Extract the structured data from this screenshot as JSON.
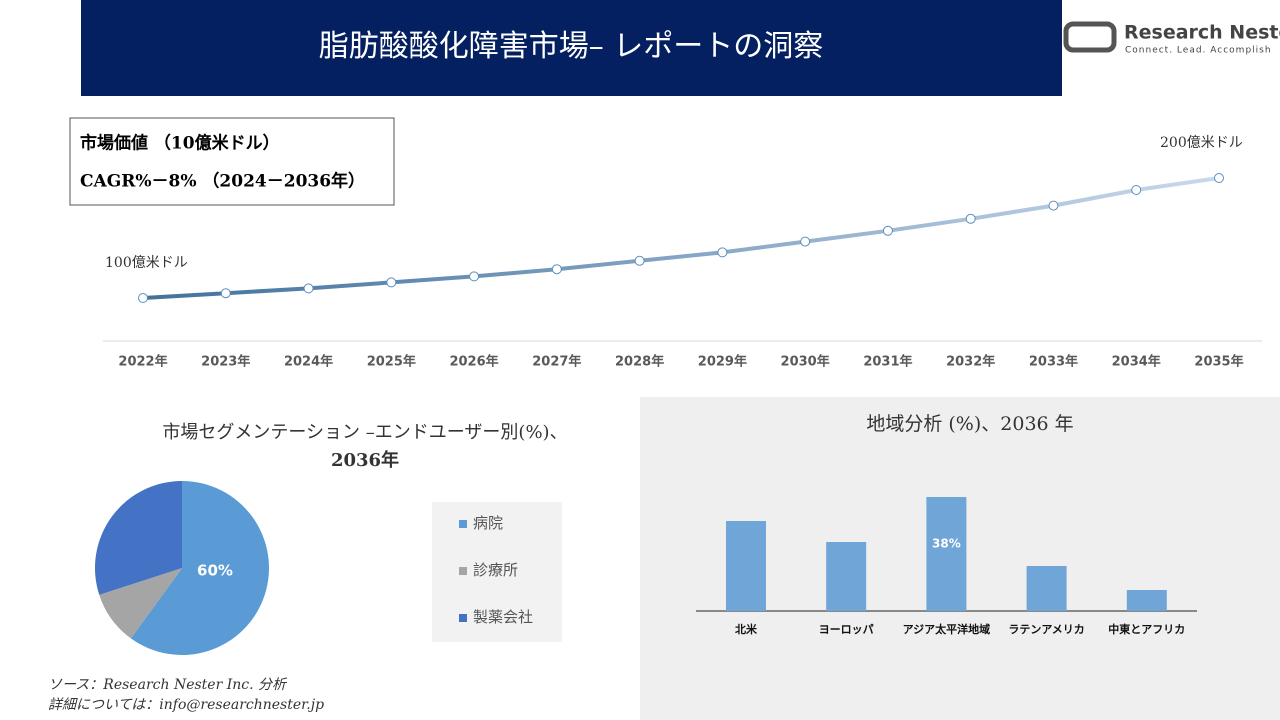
{
  "header": {
    "title": "脂肪酸酸化障害市場– レポートの洞察",
    "logo_name": "Research Nester",
    "logo_tagline": "Connect. Lead. Accomplish"
  },
  "info_box": [
    "市場価値 （10億米ドル）",
    "CAGR%－8% （2024－2036年）"
  ],
  "chart_data": [
    {
      "type": "line",
      "categories": [
        "2022年",
        "2023年",
        "2024年",
        "2025年",
        "2026年",
        "2027年",
        "2028年",
        "2029年",
        "2030年",
        "2031年",
        "2032年",
        "2033年",
        "2034年",
        "2035年"
      ],
      "values": [
        100,
        104,
        108,
        113,
        118,
        124,
        131,
        138,
        147,
        156,
        166,
        177,
        190,
        200
      ],
      "value_labels": [
        "100億米ドル",
        null,
        null,
        null,
        null,
        null,
        null,
        null,
        null,
        null,
        null,
        null,
        null,
        "200億米ドル"
      ],
      "color": "#41719c",
      "color_end": "#c9d9ec"
    },
    {
      "type": "pie",
      "title": [
        "市場セグメンテーション –エンドユーザー別(%)、",
        "2036年"
      ],
      "categories": [
        "病院",
        "診療所",
        "製薬会社"
      ],
      "values": [
        60,
        10,
        30
      ],
      "value_labels": [
        "60%",
        null,
        null
      ],
      "colors": [
        "#5b9bd5",
        "#a5a5a5",
        "#4472c4"
      ]
    },
    {
      "type": "bar",
      "title": "地域分析 (%)、2036 年",
      "categories": [
        "北米",
        "ヨーロッパ",
        "アジア太平洋地域",
        "ラテンアメリカ",
        "中東とアフリカ"
      ],
      "values": [
        30,
        23,
        38,
        15,
        7
      ],
      "value_labels": [
        null,
        null,
        "38%",
        null,
        null
      ],
      "color": "#70a5d8"
    }
  ],
  "source": [
    "ソース：Research Nester Inc. 分析",
    "詳細については：info@researchnester.jp"
  ]
}
